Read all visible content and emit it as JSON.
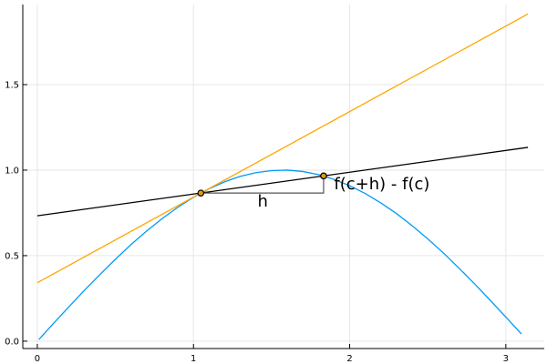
{
  "chart_data": {
    "type": "line",
    "title": "",
    "xlabel": "",
    "ylabel": "",
    "xlim": [
      -0.093,
      3.246
    ],
    "ylim": [
      -0.043,
      1.968
    ],
    "grid": true,
    "legend": "none",
    "xticks": [
      {
        "value": 0,
        "label": "0"
      },
      {
        "value": 1,
        "label": "1"
      },
      {
        "value": 2,
        "label": "2"
      },
      {
        "value": 3,
        "label": "3"
      }
    ],
    "yticks": [
      {
        "value": 0,
        "label": "0.0"
      },
      {
        "value": 0.5,
        "label": "0.5"
      },
      {
        "value": 1.0,
        "label": "1.0"
      },
      {
        "value": 1.5,
        "label": "1.5"
      }
    ],
    "series": [
      {
        "color": "#009af9",
        "x": [
          0.01,
          0.1,
          0.2,
          0.3,
          0.4,
          0.5,
          0.6,
          0.7,
          0.8,
          0.9,
          1.0,
          1.1,
          1.2,
          1.3,
          1.4,
          1.5,
          1.6,
          1.7,
          1.8,
          1.9,
          2.0,
          2.1,
          2.2,
          2.3,
          2.4,
          2.5,
          2.6,
          2.7,
          2.8,
          2.9,
          3.0,
          3.1
        ],
        "y": [
          0.01,
          0.1,
          0.199,
          0.296,
          0.389,
          0.479,
          0.565,
          0.644,
          0.717,
          0.783,
          0.841,
          0.891,
          0.932,
          0.964,
          0.985,
          0.997,
          1.0,
          0.992,
          0.974,
          0.946,
          0.909,
          0.863,
          0.808,
          0.746,
          0.675,
          0.598,
          0.516,
          0.427,
          0.335,
          0.239,
          0.141,
          0.042
        ]
      },
      {
        "color": "#ffa500",
        "x": [
          0,
          3.1416
        ],
        "y": [
          0.342,
          1.913
        ]
      },
      {
        "color": "#000000",
        "x": [
          0,
          3.1416
        ],
        "y": [
          0.733,
          1.133
        ]
      }
    ],
    "bracket": {
      "color": "#555555",
      "x": [
        1.047,
        1.833,
        1.833
      ],
      "y": [
        0.866,
        0.866,
        0.966
      ]
    },
    "points": [
      {
        "x": 1.047,
        "y": 0.866,
        "color": "#e09a10"
      },
      {
        "x": 1.833,
        "y": 0.966,
        "color": "#e09a10"
      }
    ],
    "annotations": [
      {
        "text": "h",
        "x": 1.41,
        "y": 0.82
      },
      {
        "text": "f(c+h) - f(c)",
        "x": 1.9,
        "y": 0.92
      }
    ]
  }
}
